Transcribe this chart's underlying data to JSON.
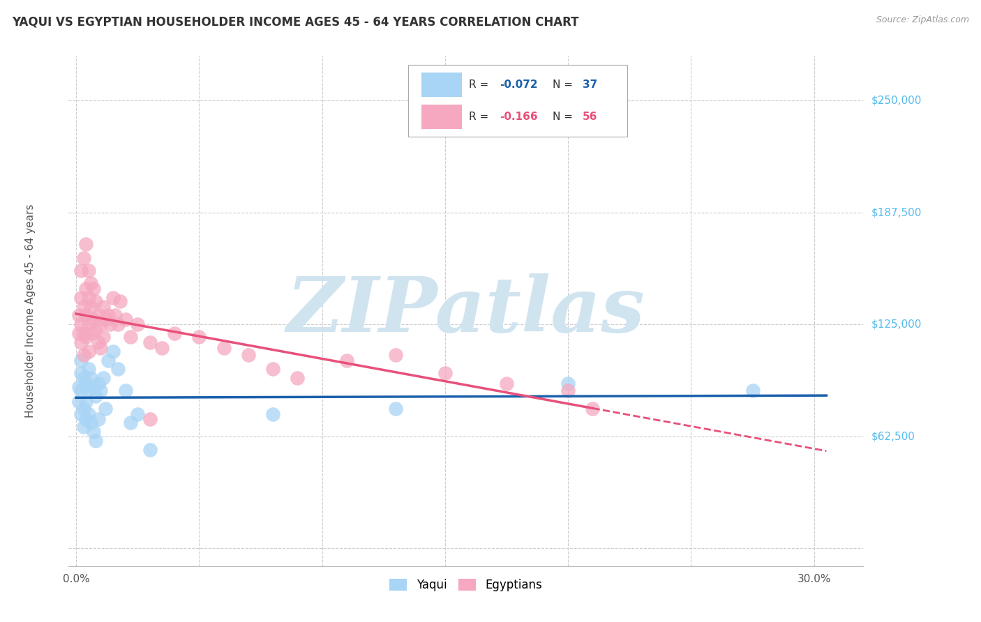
{
  "title": "YAQUI VS EGYPTIAN HOUSEHOLDER INCOME AGES 45 - 64 YEARS CORRELATION CHART",
  "source": "Source: ZipAtlas.com",
  "ylabel": "Householder Income Ages 45 - 64 years",
  "ytick_values": [
    0,
    62500,
    125000,
    187500,
    250000
  ],
  "ytick_labels": [
    "",
    "$62,500",
    "$125,000",
    "$187,500",
    "$250,000"
  ],
  "ymin": -10000,
  "ymax": 275000,
  "xmin": -0.003,
  "xmax": 0.32,
  "yaqui_color": "#A8D4F5",
  "egyptian_color": "#F5A8C0",
  "yaqui_line_color": "#1A5FAB",
  "egyptian_line_color": "#E8507A",
  "watermark_text": "ZIPatlas",
  "watermark_color": "#D0E4F0",
  "legend_r1_label": "R = ",
  "legend_r1_val": "-0.072",
  "legend_n1_label": "N = ",
  "legend_n1_val": "37",
  "legend_r2_label": "R = ",
  "legend_r2_val": "-0.166",
  "legend_n2_label": "N = ",
  "legend_n2_val": "56",
  "legend_color_blue": "#1A5FAB",
  "legend_color_pink": "#E8507A",
  "bottom_legend_yaqui": "Yaqui",
  "bottom_legend_egyptian": "Egyptians",
  "yaqui_x": [
    0.001,
    0.001,
    0.002,
    0.002,
    0.002,
    0.002,
    0.003,
    0.003,
    0.003,
    0.004,
    0.004,
    0.004,
    0.005,
    0.005,
    0.005,
    0.006,
    0.006,
    0.007,
    0.007,
    0.008,
    0.008,
    0.009,
    0.009,
    0.01,
    0.011,
    0.012,
    0.013,
    0.015,
    0.017,
    0.02,
    0.022,
    0.025,
    0.03,
    0.08,
    0.2,
    0.275,
    0.13
  ],
  "yaqui_y": [
    90000,
    82000,
    105000,
    98000,
    88000,
    75000,
    95000,
    78000,
    68000,
    92000,
    82000,
    72000,
    100000,
    88000,
    75000,
    95000,
    70000,
    90000,
    65000,
    85000,
    60000,
    92000,
    72000,
    88000,
    95000,
    78000,
    105000,
    110000,
    100000,
    88000,
    70000,
    75000,
    55000,
    75000,
    92000,
    88000,
    78000
  ],
  "egyptian_x": [
    0.001,
    0.001,
    0.002,
    0.002,
    0.002,
    0.003,
    0.003,
    0.003,
    0.004,
    0.004,
    0.004,
    0.005,
    0.005,
    0.005,
    0.006,
    0.006,
    0.007,
    0.007,
    0.008,
    0.008,
    0.009,
    0.009,
    0.01,
    0.01,
    0.011,
    0.011,
    0.012,
    0.013,
    0.014,
    0.015,
    0.016,
    0.017,
    0.018,
    0.02,
    0.022,
    0.025,
    0.03,
    0.035,
    0.04,
    0.05,
    0.06,
    0.07,
    0.08,
    0.09,
    0.11,
    0.13,
    0.15,
    0.175,
    0.2,
    0.21,
    0.002,
    0.003,
    0.004,
    0.005,
    0.006,
    0.03
  ],
  "egyptian_y": [
    130000,
    120000,
    140000,
    125000,
    115000,
    135000,
    120000,
    108000,
    145000,
    130000,
    118000,
    140000,
    125000,
    110000,
    135000,
    120000,
    145000,
    128000,
    138000,
    122000,
    130000,
    115000,
    125000,
    112000,
    135000,
    118000,
    128000,
    130000,
    125000,
    140000,
    130000,
    125000,
    138000,
    128000,
    118000,
    125000,
    115000,
    112000,
    120000,
    118000,
    112000,
    108000,
    100000,
    95000,
    105000,
    108000,
    98000,
    92000,
    88000,
    78000,
    155000,
    162000,
    170000,
    155000,
    148000,
    72000
  ]
}
